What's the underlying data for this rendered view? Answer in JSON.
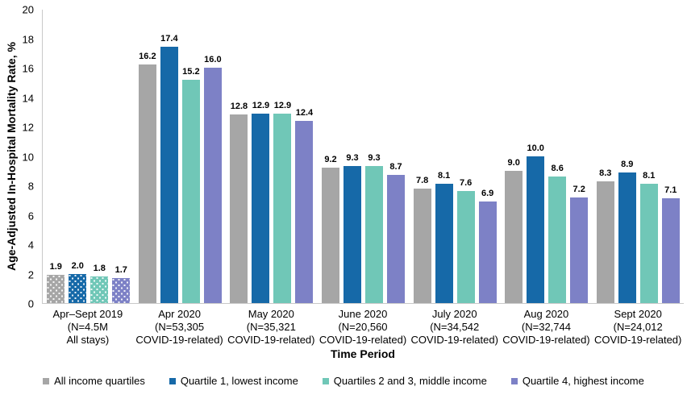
{
  "chart_data": {
    "type": "bar",
    "title": "",
    "xlabel": "Time Period",
    "ylabel": "Age-Adjusted In-Hospital Mortality Rate, %",
    "ylim": [
      0,
      20
    ],
    "ytick_step": 2,
    "yticks": [
      0,
      2,
      4,
      6,
      8,
      10,
      12,
      14,
      16,
      18,
      20
    ],
    "grid": false,
    "legend_position": "bottom",
    "categories": [
      "Apr–Sept 2019\n(N=4.5M\nAll stays)",
      "Apr 2020\n(N=53,305\nCOVID-19-related)",
      "May 2020\n(N=35,321\nCOVID-19-related)",
      "June 2020\n(N=20,560\nCOVID-19-related)",
      "July 2020\n(N=34,542\nCOVID-19-related)",
      "Aug 2020\n(N=32,744\nCOVID-19-related)",
      "Sept 2020\n(N=24,012\nCOVID-19-related)"
    ],
    "series": [
      {
        "name": "All income quartiles",
        "color": "#a6a6a6",
        "values": [
          1.9,
          16.2,
          12.8,
          9.2,
          7.8,
          9.0,
          8.3
        ]
      },
      {
        "name": "Quartile 1, lowest income",
        "color": "#1669a8",
        "values": [
          2.0,
          17.4,
          12.9,
          9.3,
          8.1,
          10.0,
          8.9
        ]
      },
      {
        "name": "Quartiles 2 and 3, middle income",
        "color": "#70c7b7",
        "values": [
          1.8,
          15.2,
          12.9,
          9.3,
          7.6,
          8.6,
          8.1
        ]
      },
      {
        "name": "Quartile 4, highest income",
        "color": "#7d81c6",
        "values": [
          1.7,
          16.0,
          12.4,
          8.7,
          6.9,
          7.2,
          7.1
        ]
      }
    ],
    "patterned_category_index": 0,
    "value_label_decimals": 1
  }
}
